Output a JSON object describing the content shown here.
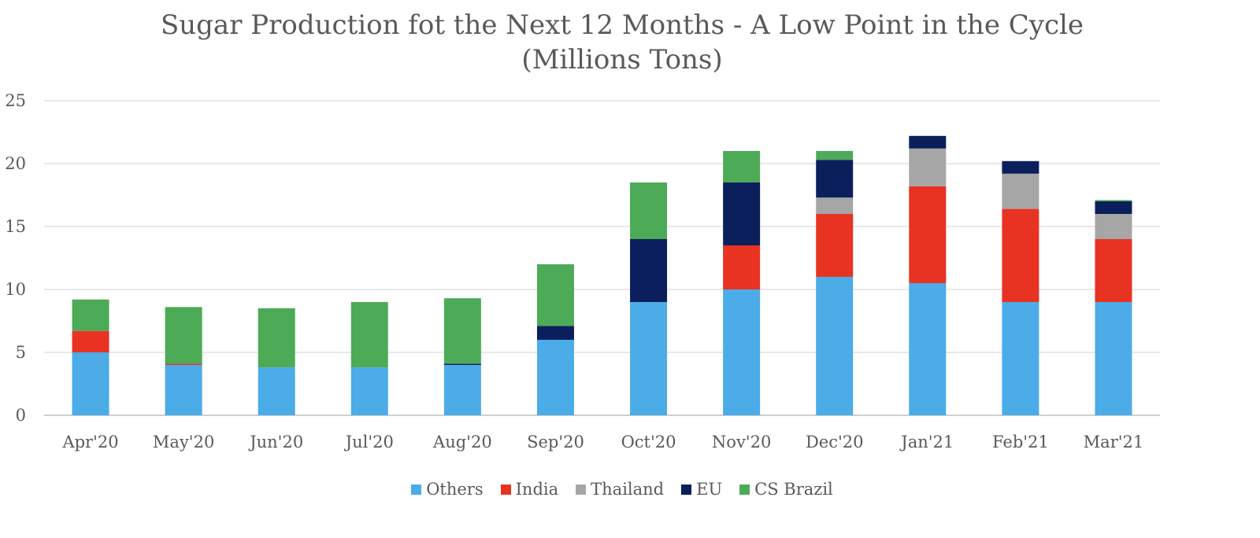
{
  "chart_data": {
    "type": "bar",
    "stacked": true,
    "title": "Sugar Production fot the Next 12 Months - A Low Point in the Cycle",
    "subtitle": "(Millions Tons)",
    "xlabel": "",
    "ylabel": "",
    "ylim": [
      0,
      25
    ],
    "yticks": [
      0,
      5,
      10,
      15,
      20,
      25
    ],
    "grid": true,
    "legend_position": "bottom",
    "categories": [
      "Apr'20",
      "May'20",
      "Jun'20",
      "Jul'20",
      "Aug'20",
      "Sep'20",
      "Oct'20",
      "Nov'20",
      "Dec'20",
      "Jan'21",
      "Feb'21",
      "Mar'21"
    ],
    "series": [
      {
        "name": "Others",
        "color": "#4BACE8",
        "values": [
          5.0,
          4.0,
          3.8,
          3.8,
          4.0,
          6.0,
          9.0,
          10.0,
          11.0,
          10.5,
          9.0,
          9.0
        ]
      },
      {
        "name": "India",
        "color": "#E83323",
        "values": [
          1.7,
          0.1,
          0.0,
          0.0,
          0.0,
          0.0,
          0.0,
          3.5,
          5.0,
          7.7,
          7.4,
          5.0
        ]
      },
      {
        "name": "Thailand",
        "color": "#A6A6A6",
        "values": [
          0.0,
          0.0,
          0.0,
          0.0,
          0.0,
          0.0,
          0.0,
          0.0,
          1.3,
          3.0,
          2.8,
          2.0
        ]
      },
      {
        "name": "EU",
        "color": "#0A1F5C",
        "values": [
          0.0,
          0.0,
          0.0,
          0.0,
          0.1,
          1.1,
          5.0,
          5.0,
          3.0,
          1.0,
          1.0,
          1.0
        ]
      },
      {
        "name": "CS Brazil",
        "color": "#4DAA57",
        "values": [
          2.5,
          4.5,
          4.7,
          5.2,
          5.2,
          4.9,
          4.5,
          2.5,
          0.7,
          0.0,
          0.0,
          0.1
        ]
      }
    ]
  }
}
